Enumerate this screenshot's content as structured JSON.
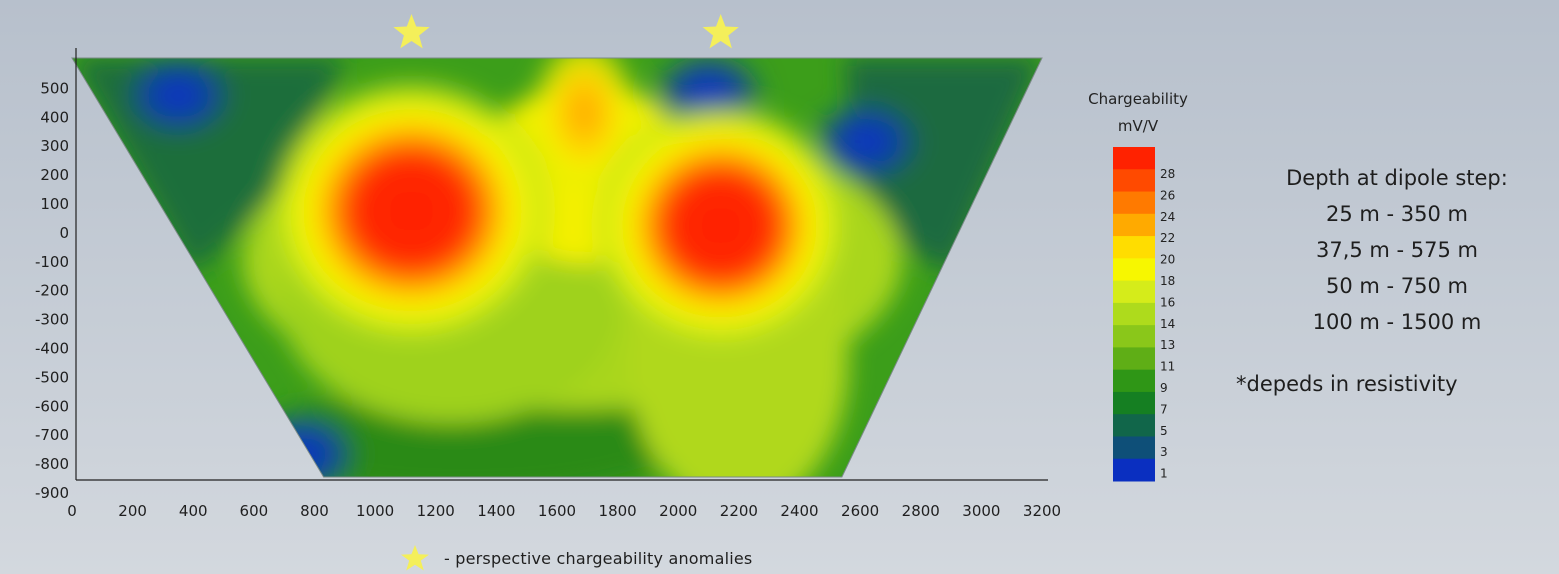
{
  "chart_data": {
    "type": "heatmap",
    "title": "",
    "xlabel": "",
    "ylabel": "",
    "x_ticks": [
      "0",
      "200",
      "400",
      "600",
      "800",
      "1000",
      "1200",
      "1400",
      "1600",
      "1800",
      "2000",
      "2200",
      "2400",
      "2600",
      "2800",
      "3000",
      "3200"
    ],
    "y_ticks": [
      "500",
      "400",
      "300",
      "200",
      "100",
      "0",
      "-100",
      "-200",
      "-300",
      "-400",
      "-500",
      "-600",
      "-700",
      "-800",
      "-900"
    ],
    "xlim": [
      0,
      3200
    ],
    "ylim": [
      -900,
      550
    ],
    "section_outline": [
      [
        0,
        550
      ],
      [
        3200,
        550
      ],
      [
        2540,
        -900
      ],
      [
        830,
        -900
      ]
    ],
    "anomalies": [
      {
        "x": 1120,
        "y": 20,
        "value": 29
      },
      {
        "x": 2140,
        "y": -30,
        "value": 29
      },
      {
        "x": 1690,
        "y": 360,
        "value": 22
      }
    ],
    "low_zones": [
      {
        "x": 2100,
        "y": 430,
        "value": 1
      },
      {
        "x": 2620,
        "y": 260,
        "value": 2
      },
      {
        "x": 350,
        "y": 420,
        "value": 3
      },
      {
        "x": 760,
        "y": -820,
        "value": 4
      }
    ],
    "colorbar": {
      "title_line1": "Chargeability",
      "title_line2": "mV/V",
      "labels": [
        "28",
        "26",
        "24",
        "22",
        "20",
        "18",
        "16",
        "14",
        "13",
        "11",
        "9",
        "7",
        "5",
        "3",
        "1"
      ],
      "colors": [
        "#ff2200",
        "#ff4a00",
        "#ff7a00",
        "#ffaa00",
        "#ffdd00",
        "#f7f700",
        "#d5ec1a",
        "#aedb1c",
        "#8ac71a",
        "#5fae16",
        "#2f9616",
        "#157f22",
        "#11664a",
        "#0e4f78",
        "#0a2fc0"
      ]
    },
    "markers": [
      {
        "x": 1120
      },
      {
        "x": 2140
      }
    ]
  },
  "depth_panel": {
    "title": "Depth at dipole step:",
    "lines": [
      "25 m - 350 m",
      "37,5 m - 575 m",
      "50 m - 750 m",
      "100 m - 1500 m"
    ]
  },
  "note": "*depeds in resistivity",
  "legend_note": "- perspective chargeability anomalies"
}
